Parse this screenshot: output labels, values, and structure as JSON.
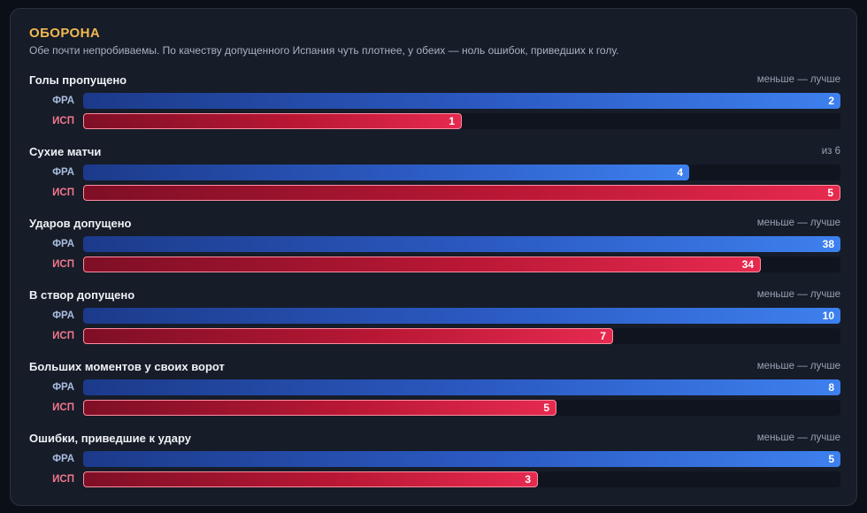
{
  "title": "ОБОРОНА",
  "subtitle": "Обе почти непробиваемы. По качеству допущенного Испания чуть плотнее, у обеих — ноль ошибок, приведших к голу.",
  "colors": {
    "accent": "#f2b851",
    "fra_bar_start": "#1c3a8a",
    "fra_bar_end": "#3d80ee",
    "esp_bar_start": "#7e0f26",
    "esp_bar_end": "#e62a4f",
    "esp_border": "#ff8da0"
  },
  "chart_data": {
    "type": "bar",
    "orientation": "horizontal",
    "teams": [
      "ФРА",
      "ИСП"
    ],
    "metrics": [
      {
        "label": "Голы пропущено",
        "note": "меньше — лучше",
        "max": 2,
        "series": [
          {
            "team": "ФРА",
            "value": 2
          },
          {
            "team": "ИСП",
            "value": 1
          }
        ]
      },
      {
        "label": "Сухие матчи",
        "note": "из 6",
        "max": 5,
        "series": [
          {
            "team": "ФРА",
            "value": 4
          },
          {
            "team": "ИСП",
            "value": 5
          }
        ]
      },
      {
        "label": "Ударов допущено",
        "note": "меньше — лучше",
        "max": 38,
        "series": [
          {
            "team": "ФРА",
            "value": 38
          },
          {
            "team": "ИСП",
            "value": 34
          }
        ]
      },
      {
        "label": "В створ допущено",
        "note": "меньше — лучше",
        "max": 10,
        "series": [
          {
            "team": "ФРА",
            "value": 10
          },
          {
            "team": "ИСП",
            "value": 7
          }
        ]
      },
      {
        "label": "Больших моментов у своих ворот",
        "note": "меньше — лучше",
        "max": 8,
        "series": [
          {
            "team": "ФРА",
            "value": 8
          },
          {
            "team": "ИСП",
            "value": 5
          }
        ]
      },
      {
        "label": "Ошибки, приведшие к удару",
        "note": "меньше — лучше",
        "max": 5,
        "series": [
          {
            "team": "ФРА",
            "value": 5
          },
          {
            "team": "ИСП",
            "value": 3
          }
        ]
      }
    ]
  }
}
